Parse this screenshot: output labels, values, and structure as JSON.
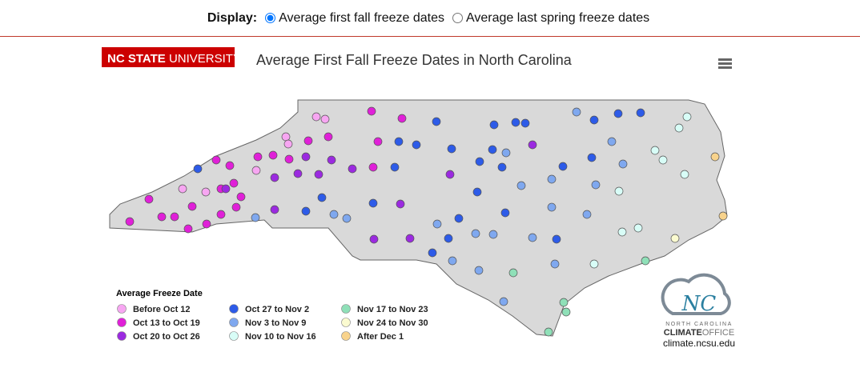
{
  "display": {
    "label": "Display:",
    "options": [
      {
        "label": "Average first fall freeze dates",
        "selected": true
      },
      {
        "label": "Average last spring freeze dates",
        "selected": false
      }
    ]
  },
  "header": {
    "brand": [
      "NC STATE",
      "UNIVERSITY"
    ],
    "title": "Average First Fall Freeze Dates in North Carolina"
  },
  "map": {
    "legend": {
      "title": "Average Freeze Date",
      "items": [
        {
          "label": "Before Oct 12",
          "color": "#f7a6f2"
        },
        {
          "label": "Oct 13 to Oct 19",
          "color": "#e020d8"
        },
        {
          "label": "Oct 20 to Oct 26",
          "color": "#9b2ae0"
        },
        {
          "label": "Oct 27 to Nov 2",
          "color": "#2d5be8"
        },
        {
          "label": "Nov 3 to Nov 9",
          "color": "#7fa8ef"
        },
        {
          "label": "Nov 10 to Nov 16",
          "color": "#d8fdf7"
        },
        {
          "label": "Nov 17 to Nov 23",
          "color": "#8fe0b8"
        },
        {
          "label": "Nov 24 to Nov 30",
          "color": "#fbfbd0"
        },
        {
          "label": "After Dec 1",
          "color": "#f8d38c"
        }
      ]
    }
  },
  "logo": {
    "line1": "NORTH CAROLINA",
    "line2": "CLIMATE",
    "line3": "OFFICE",
    "url": "climate.ncsu.edu"
  }
}
